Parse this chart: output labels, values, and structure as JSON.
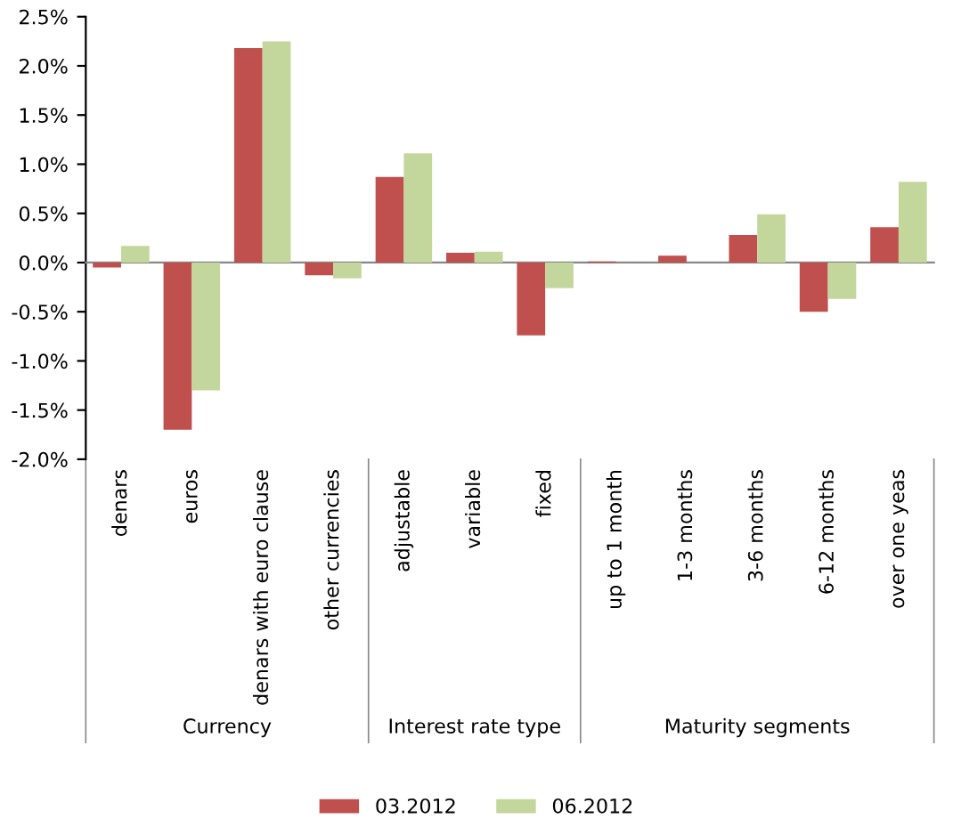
{
  "chart_data": {
    "type": "bar",
    "categories": [
      "denars",
      "euros",
      "denars with euro clause",
      "other currencies",
      "adjustable",
      "variable",
      "fixed",
      "up to 1 month",
      "1-3 months",
      "3-6 months",
      "6-12 months",
      "over one yeas"
    ],
    "series": [
      {
        "name": "03.2012",
        "color": "#c0504d",
        "values": [
          -0.05,
          -1.7,
          2.18,
          -0.13,
          0.87,
          0.1,
          -0.74,
          0.01,
          0.07,
          0.28,
          -0.5,
          0.36
        ]
      },
      {
        "name": "06.2012",
        "color": "#c3d69b",
        "values": [
          0.17,
          -1.3,
          2.25,
          -0.16,
          1.11,
          0.11,
          -0.26,
          0.0,
          0.0,
          0.49,
          -0.37,
          0.82
        ]
      }
    ],
    "annotations": [
      "Currency",
      "Interest rate type",
      "Maturity segments"
    ],
    "ylim": [
      -2.0,
      2.5
    ],
    "yticks": [
      {
        "value": -2.0,
        "label": "-2.0%"
      },
      {
        "value": -1.5,
        "label": "-1.5%"
      },
      {
        "value": -1.0,
        "label": "-1.0%"
      },
      {
        "value": -0.5,
        "label": "-0.5%"
      },
      {
        "value": 0.0,
        "label": "0.0%"
      },
      {
        "value": 0.5,
        "label": "0.5%"
      },
      {
        "value": 1.0,
        "label": "1.0%"
      },
      {
        "value": 1.5,
        "label": "1.5%"
      },
      {
        "value": 2.0,
        "label": "2.0%"
      },
      {
        "value": 2.5,
        "label": "2.5%"
      }
    ],
    "legend": "bottom"
  }
}
